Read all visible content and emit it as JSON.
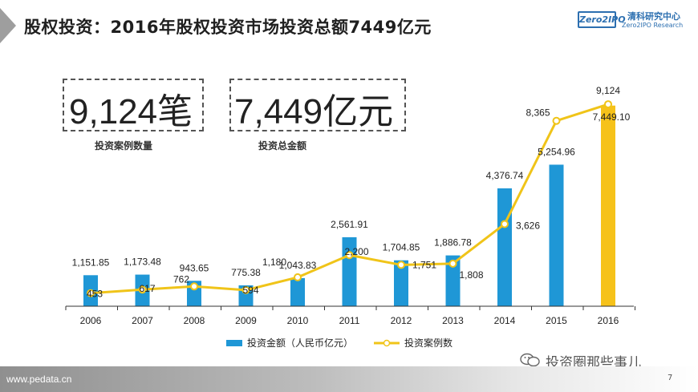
{
  "header": {
    "title": "股权投资：2016年股权投资市场投资总额7449亿元"
  },
  "logo": {
    "box_text": "Zero2IPO",
    "name_cn": "清科研究中心",
    "name_en": "Zero2IPO Research",
    "color": "#2c6fb0"
  },
  "stats": [
    {
      "value": "9,124笔",
      "label": "投资案例数量"
    },
    {
      "value": "7,449亿元",
      "label": "投资总金额"
    }
  ],
  "footer": {
    "site": "www.pedata.cn",
    "page": "7"
  },
  "watermark": {
    "text": "投资圈那些事儿"
  },
  "colors": {
    "bar": "#1f97d6",
    "bar_highlight": "#f6c21a",
    "line": "#f0c419"
  },
  "chart_data": {
    "type": "bar",
    "categories": [
      "2006",
      "2007",
      "2008",
      "2009",
      "2010",
      "2011",
      "2012",
      "2013",
      "2014",
      "2015",
      "2016"
    ],
    "series": [
      {
        "name": "投资金额（人民币亿元）",
        "type": "bar",
        "values": [
          1151.85,
          1173.48,
          943.65,
          775.38,
          1043.83,
          2561.91,
          1704.85,
          1886.78,
          4376.74,
          5254.96,
          7449.1
        ],
        "labels": [
          "1,151.85",
          "1,173.48",
          "943.65",
          "775.38",
          "1,043.83",
          "2,561.91",
          "1,704.85",
          "1,886.78",
          "4,376.74",
          "5,254.96",
          "7,449.10"
        ]
      },
      {
        "name": "投资案例数",
        "type": "line",
        "values": [
          453,
          617,
          762,
          594,
          1180,
          2200,
          1751,
          1808,
          3626,
          8365,
          9124
        ],
        "labels": [
          "453",
          "617",
          "762",
          "594",
          "1,180",
          "2,200",
          "1,751",
          "1,808",
          "3,626",
          "8,365",
          "9,124"
        ]
      }
    ],
    "legend_position": "bottom",
    "grid": false
  }
}
